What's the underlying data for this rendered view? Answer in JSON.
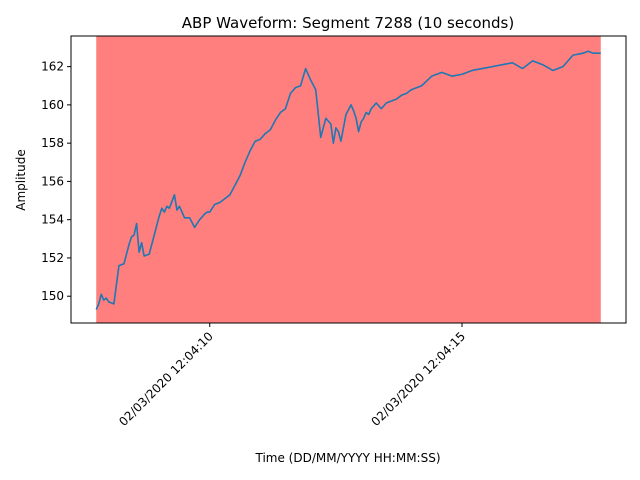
{
  "chart_data": {
    "type": "line",
    "title": "ABP Waveform: Segment 7288 (10 seconds)",
    "xlabel": "Time (DD/MM/YYYY HH:MM:SS)",
    "ylabel": "Amplitude",
    "grid": false,
    "line_color": "#1f77b4",
    "shade_color": "#ff7f7f",
    "xlim": [
      "02/03/2020 12:04:07.250",
      "02/03/2020 12:04:18.250"
    ],
    "ylim": [
      148.6,
      163.6
    ],
    "x_ticks": [
      "02/03/2020 12:04:10",
      "02/03/2020 12:04:15"
    ],
    "y_ticks": [
      150,
      152,
      154,
      156,
      158,
      160,
      162
    ],
    "shaded_region": [
      "02/03/2020 12:04:07.750",
      "02/03/2020 12:04:17.750"
    ],
    "series": [
      {
        "x": [
          "02/03/2020 12:04:07.750",
          "02/03/2020 12:04:07.800",
          "02/03/2020 12:04:07.850",
          "02/03/2020 12:04:07.900",
          "02/03/2020 12:04:07.950",
          "02/03/2020 12:04:08.000",
          "02/03/2020 12:04:08.100",
          "02/03/2020 12:04:08.200",
          "02/03/2020 12:04:08.300",
          "02/03/2020 12:04:08.400",
          "02/03/2020 12:04:08.450",
          "02/03/2020 12:04:08.500",
          "02/03/2020 12:04:08.550",
          "02/03/2020 12:04:08.600",
          "02/03/2020 12:04:08.650",
          "02/03/2020 12:04:08.700",
          "02/03/2020 12:04:08.800",
          "02/03/2020 12:04:08.900",
          "02/03/2020 12:04:09.000",
          "02/03/2020 12:04:09.050",
          "02/03/2020 12:04:09.100",
          "02/03/2020 12:04:09.150",
          "02/03/2020 12:04:09.200",
          "02/03/2020 12:04:09.300",
          "02/03/2020 12:04:09.350",
          "02/03/2020 12:04:09.400",
          "02/03/2020 12:04:09.500",
          "02/03/2020 12:04:09.600",
          "02/03/2020 12:04:09.700",
          "02/03/2020 12:04:09.800",
          "02/03/2020 12:04:09.900",
          "02/03/2020 12:04:09.950",
          "02/03/2020 12:04:10.000",
          "02/03/2020 12:04:10.100",
          "02/03/2020 12:04:10.200",
          "02/03/2020 12:04:10.300",
          "02/03/2020 12:04:10.400",
          "02/03/2020 12:04:10.500",
          "02/03/2020 12:04:10.600",
          "02/03/2020 12:04:10.700",
          "02/03/2020 12:04:10.800",
          "02/03/2020 12:04:10.900",
          "02/03/2020 12:04:11.000",
          "02/03/2020 12:04:11.100",
          "02/03/2020 12:04:11.200",
          "02/03/2020 12:04:11.300",
          "02/03/2020 12:04:11.400",
          "02/03/2020 12:04:11.500",
          "02/03/2020 12:04:11.600",
          "02/03/2020 12:04:11.700",
          "02/03/2020 12:04:11.800",
          "02/03/2020 12:04:11.900",
          "02/03/2020 12:04:12.000",
          "02/03/2020 12:04:12.100",
          "02/03/2020 12:04:12.200",
          "02/03/2020 12:04:12.300",
          "02/03/2020 12:04:12.400",
          "02/03/2020 12:04:12.450",
          "02/03/2020 12:04:12.500",
          "02/03/2020 12:04:12.550",
          "02/03/2020 12:04:12.600",
          "02/03/2020 12:04:12.650",
          "02/03/2020 12:04:12.700",
          "02/03/2020 12:04:12.800",
          "02/03/2020 12:04:12.850",
          "02/03/2020 12:04:12.900",
          "02/03/2020 12:04:12.950",
          "02/03/2020 12:04:13.000",
          "02/03/2020 12:04:13.050",
          "02/03/2020 12:04:13.100",
          "02/03/2020 12:04:13.150",
          "02/03/2020 12:04:13.200",
          "02/03/2020 12:04:13.300",
          "02/03/2020 12:04:13.400",
          "02/03/2020 12:04:13.500",
          "02/03/2020 12:04:13.600",
          "02/03/2020 12:04:13.700",
          "02/03/2020 12:04:13.800",
          "02/03/2020 12:04:13.900",
          "02/03/2020 12:04:14.000",
          "02/03/2020 12:04:14.200",
          "02/03/2020 12:04:14.400",
          "02/03/2020 12:04:14.600",
          "02/03/2020 12:04:14.800",
          "02/03/2020 12:04:15.000",
          "02/03/2020 12:04:15.200",
          "02/03/2020 12:04:15.400",
          "02/03/2020 12:04:15.600",
          "02/03/2020 12:04:15.800",
          "02/03/2020 12:04:16.000",
          "02/03/2020 12:04:16.200",
          "02/03/2020 12:04:16.400",
          "02/03/2020 12:04:16.600",
          "02/03/2020 12:04:16.800",
          "02/03/2020 12:04:17.000",
          "02/03/2020 12:04:17.200",
          "02/03/2020 12:04:17.400",
          "02/03/2020 12:04:17.500",
          "02/03/2020 12:04:17.600",
          "02/03/2020 12:04:17.750"
        ],
        "values": [
          149.3,
          149.6,
          150.1,
          149.8,
          149.9,
          149.7,
          149.6,
          151.6,
          151.7,
          152.7,
          153.1,
          153.2,
          153.8,
          152.3,
          152.8,
          152.1,
          152.2,
          153.2,
          154.2,
          154.6,
          154.4,
          154.7,
          154.6,
          155.3,
          154.5,
          154.7,
          154.1,
          154.1,
          153.6,
          154.0,
          154.3,
          154.4,
          154.4,
          154.8,
          154.9,
          155.1,
          155.3,
          155.8,
          156.3,
          157.0,
          157.6,
          158.1,
          158.2,
          158.5,
          158.7,
          159.2,
          159.6,
          159.8,
          160.6,
          160.9,
          161.0,
          161.9,
          161.3,
          160.8,
          158.3,
          159.3,
          159.0,
          158.0,
          158.8,
          158.6,
          158.1,
          158.8,
          159.5,
          160.0,
          159.7,
          159.3,
          158.6,
          159.1,
          159.3,
          159.6,
          159.5,
          159.8,
          160.1,
          159.8,
          160.1,
          160.2,
          160.3,
          160.5,
          160.6,
          160.8,
          161.0,
          161.5,
          161.7,
          161.5,
          161.6,
          161.8,
          161.9,
          162.0,
          162.1,
          162.2,
          161.9,
          162.3,
          162.1,
          161.8,
          162.0,
          162.6,
          162.7,
          162.8,
          162.7,
          162.7
        ]
      }
    ]
  }
}
